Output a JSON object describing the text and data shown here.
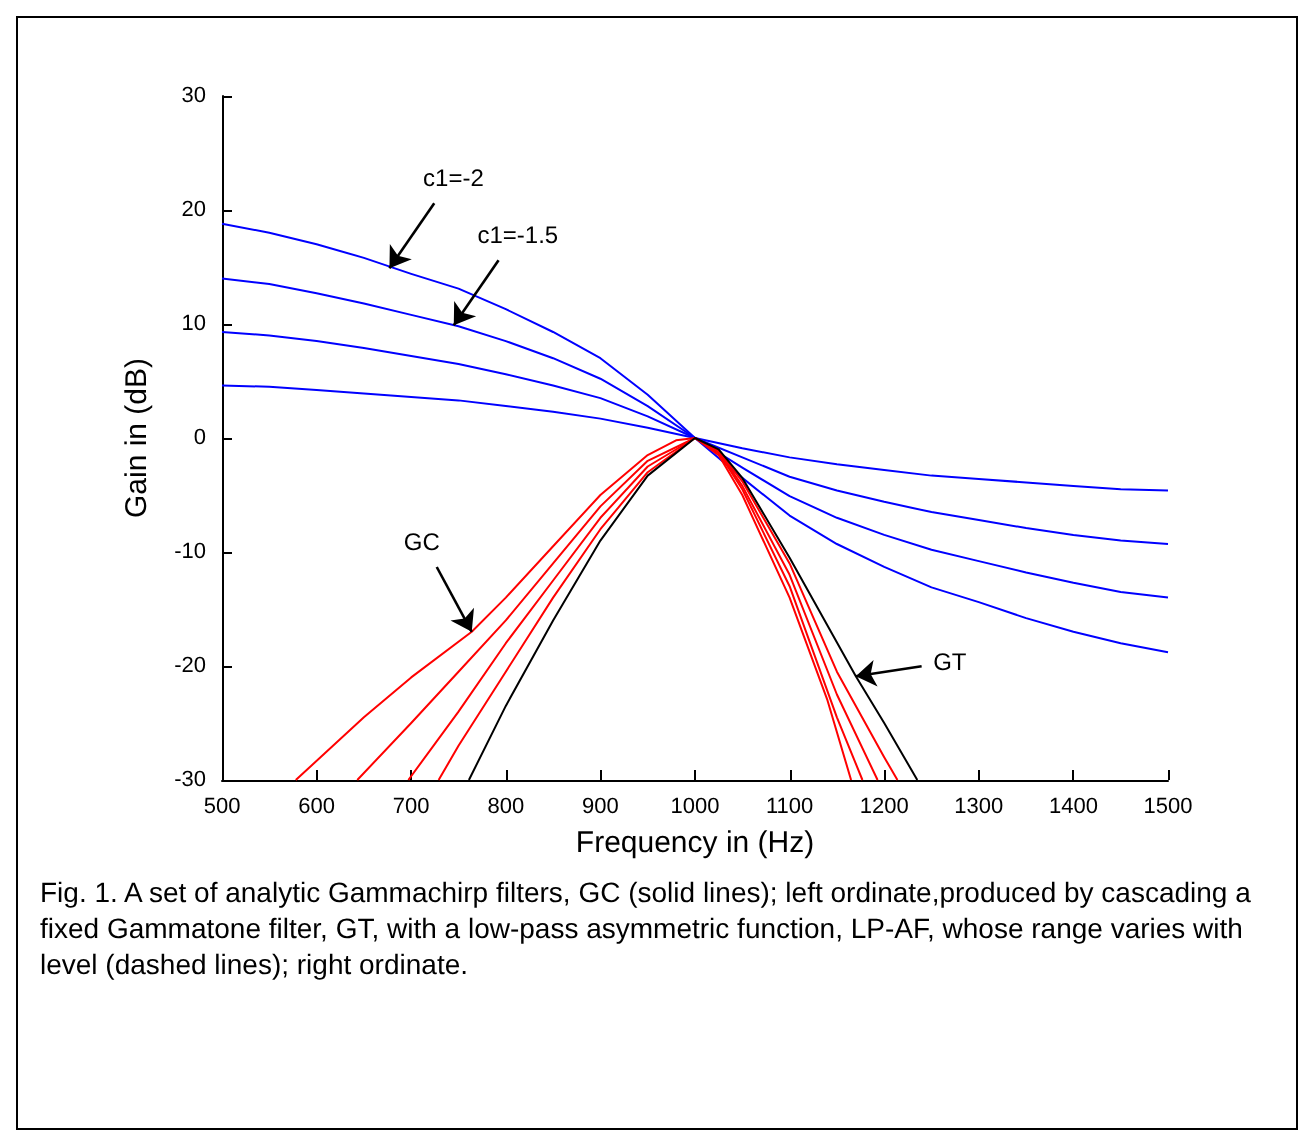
{
  "chart_data": {
    "type": "line",
    "xlabel": "Frequency in (Hz)",
    "ylabel": "Gain in (dB)",
    "xlim": [
      500,
      1500
    ],
    "xticks": [
      500,
      600,
      700,
      800,
      900,
      1000,
      1100,
      1200,
      1300,
      1400,
      1500
    ],
    "ylim": [
      -30,
      30
    ],
    "yticks": [
      -30,
      -20,
      -10,
      0,
      10,
      20,
      30
    ],
    "grid": false,
    "annotations": [
      {
        "text": "c1=-2",
        "x": 677,
        "y": 14.9
      },
      {
        "text": "c1=-1.5",
        "x": 745,
        "y": 9.9
      },
      {
        "text": "GC",
        "x": 764,
        "y": -17
      },
      {
        "text": "GT",
        "x": 1170,
        "y": -20.9
      },
      "Fig. 1. A set of analytic Gammachirp filters, GC (solid lines); left ordinate,produced by cascading a fixed Gammatone filter, GT, with a low-pass asymmetric function, LP-AF, whose range varies with level (dashed lines); right ordinate."
    ],
    "series": [
      {
        "color": "#0000ff",
        "x": [
          500,
          550,
          600,
          650,
          700,
          750,
          800,
          850,
          900,
          950,
          1000,
          1050,
          1100,
          1150,
          1200,
          1250,
          1300,
          1350,
          1400,
          1450,
          1500
        ],
        "values": [
          18.8,
          18.0,
          17.0,
          15.8,
          14.4,
          13.1,
          11.3,
          9.3,
          7.0,
          3.8,
          0,
          -3.5,
          -6.8,
          -9.3,
          -11.3,
          -13.1,
          -14.4,
          -15.8,
          -17.0,
          -18.0,
          -18.8
        ]
      },
      {
        "color": "#0000ff",
        "x": [
          500,
          550,
          600,
          650,
          700,
          750,
          800,
          850,
          900,
          950,
          1000,
          1050,
          1100,
          1150,
          1200,
          1250,
          1300,
          1350,
          1400,
          1450,
          1500
        ],
        "values": [
          14.0,
          13.5,
          12.7,
          11.8,
          10.8,
          9.8,
          8.5,
          7.0,
          5.2,
          2.8,
          0,
          -2.6,
          -5.1,
          -7.0,
          -8.5,
          -9.8,
          -10.8,
          -11.8,
          -12.7,
          -13.5,
          -14.0
        ]
      },
      {
        "color": "#0000ff",
        "x": [
          500,
          550,
          600,
          650,
          700,
          750,
          800,
          850,
          900,
          950,
          1000,
          1050,
          1100,
          1150,
          1200,
          1250,
          1300,
          1350,
          1400,
          1450,
          1500
        ],
        "values": [
          9.3,
          9.0,
          8.5,
          7.9,
          7.2,
          6.5,
          5.6,
          4.6,
          3.5,
          1.9,
          0,
          -1.7,
          -3.4,
          -4.6,
          -5.6,
          -6.5,
          -7.2,
          -7.9,
          -8.5,
          -9.0,
          -9.3
        ]
      },
      {
        "color": "#0000ff",
        "x": [
          500,
          550,
          600,
          650,
          700,
          750,
          800,
          850,
          900,
          950,
          1000,
          1050,
          1100,
          1150,
          1200,
          1250,
          1300,
          1350,
          1400,
          1450,
          1500
        ],
        "values": [
          4.6,
          4.5,
          4.2,
          3.9,
          3.6,
          3.3,
          2.8,
          2.3,
          1.7,
          0.9,
          0,
          -0.9,
          -1.7,
          -2.3,
          -2.8,
          -3.3,
          -3.6,
          -3.9,
          -4.2,
          -4.5,
          -4.6
        ]
      },
      {
        "color": "#ff0000",
        "x": [
          578,
          650,
          700,
          764,
          800,
          850,
          900,
          950,
          980,
          1000,
          1025,
          1050,
          1100,
          1140,
          1165
        ],
        "values": [
          -30,
          -24.5,
          -21,
          -17,
          -14,
          -9.5,
          -5,
          -1.5,
          -0.2,
          0,
          -1.5,
          -5,
          -14,
          -23,
          -30
        ]
      },
      {
        "color": "#ff0000",
        "x": [
          643,
          700,
          750,
          800,
          850,
          900,
          950,
          1000,
          1025,
          1050,
          1100,
          1150,
          1177
        ],
        "values": [
          -30,
          -25,
          -20.5,
          -16,
          -11,
          -6,
          -2,
          0,
          -1.3,
          -4.5,
          -13,
          -24.5,
          -30
        ]
      },
      {
        "color": "#ff0000",
        "x": [
          697,
          750,
          800,
          850,
          900,
          950,
          1000,
          1025,
          1050,
          1100,
          1150,
          1193
        ],
        "values": [
          -30,
          -24,
          -18,
          -12.5,
          -7,
          -2.5,
          0,
          -1.2,
          -4.2,
          -12,
          -22.5,
          -30
        ]
      },
      {
        "color": "#ff0000",
        "x": [
          729,
          750,
          800,
          850,
          900,
          950,
          1000,
          1025,
          1050,
          1100,
          1150,
          1200,
          1214
        ],
        "values": [
          -30,
          -27,
          -20.5,
          -14,
          -8,
          -3,
          0,
          -1.1,
          -3.8,
          -11,
          -20.5,
          -28,
          -30
        ]
      },
      {
        "color": "#000000",
        "x": [
          761,
          800,
          850,
          900,
          950,
          1000,
          1025,
          1050,
          1100,
          1170,
          1200,
          1235
        ],
        "values": [
          -30,
          -23.5,
          -16,
          -9,
          -3.3,
          0,
          -1,
          -3.5,
          -10.5,
          -20.9,
          -25,
          -30
        ]
      }
    ]
  }
}
